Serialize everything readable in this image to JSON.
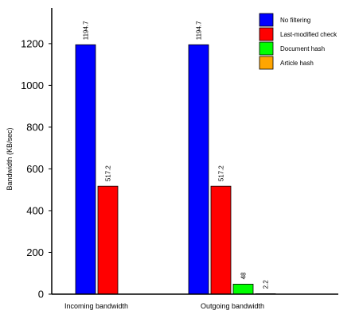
{
  "chart_data": {
    "type": "bar",
    "title": "",
    "xlabel": "",
    "ylabel": "Bandwidth (KB/sec)",
    "ylim": [
      0,
      1350
    ],
    "yticks": [
      0,
      200,
      400,
      600,
      800,
      1000,
      1200
    ],
    "grid": false,
    "legend_position": "top-right",
    "categories": [
      "Incoming bandwidth",
      "Outgoing bandwidth"
    ],
    "series": [
      {
        "name": "No filtering",
        "color": "#0000ff",
        "values": [
          1194.7,
          1194.7
        ],
        "labels": [
          "1194.7",
          "1194.7"
        ]
      },
      {
        "name": "Last-modified check",
        "color": "#ff0000",
        "values": [
          517.2,
          517.2
        ],
        "labels": [
          "517.2",
          "517.2"
        ]
      },
      {
        "name": "Document hash",
        "color": "#00ff00",
        "values": [
          null,
          48
        ],
        "labels": [
          null,
          "48"
        ]
      },
      {
        "name": "Article hash",
        "color": "#ffa500",
        "values": [
          null,
          2.2
        ],
        "labels": [
          null,
          "2.2"
        ]
      }
    ]
  }
}
